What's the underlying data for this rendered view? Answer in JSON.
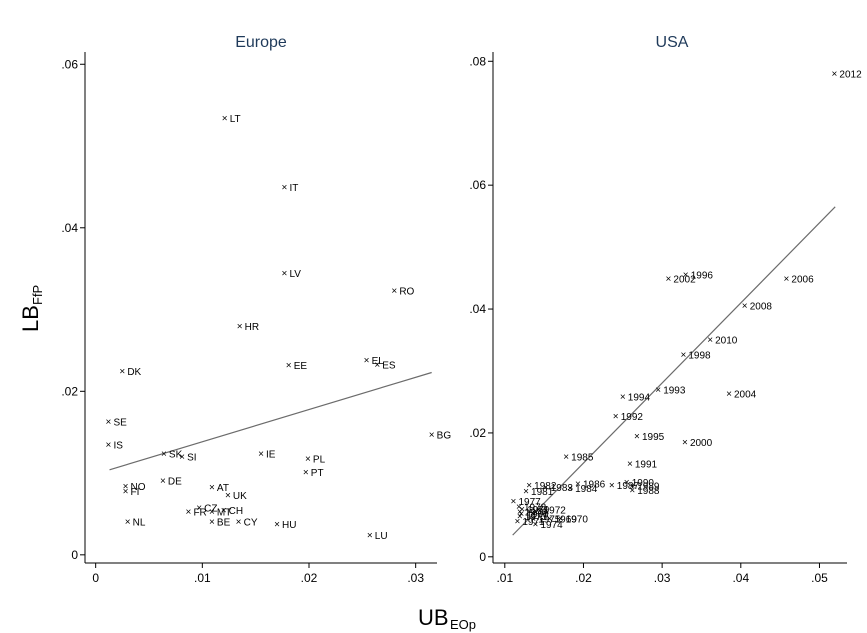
{
  "chart_data": [
    {
      "type": "scatter",
      "title": "Europe",
      "xlim": [
        -0.001,
        0.032
      ],
      "ylim": [
        -0.001,
        0.0615
      ],
      "xticks": [
        "0",
        ".01",
        ".02",
        ".03"
      ],
      "xtick_values": [
        0,
        0.01,
        0.02,
        0.03
      ],
      "yticks": [
        "0",
        ".02",
        ".04",
        ".06"
      ],
      "ytick_values": [
        0,
        0.02,
        0.04,
        0.06
      ],
      "points": [
        {
          "label": "LT",
          "x": 0.0121,
          "y": 0.0534
        },
        {
          "label": "IT",
          "x": 0.0177,
          "y": 0.045
        },
        {
          "label": "LV",
          "x": 0.0177,
          "y": 0.0345
        },
        {
          "label": "RO",
          "x": 0.028,
          "y": 0.0323
        },
        {
          "label": "HR",
          "x": 0.0135,
          "y": 0.028
        },
        {
          "label": "DK",
          "x": 0.0025,
          "y": 0.0225
        },
        {
          "label": "EE",
          "x": 0.0181,
          "y": 0.0232
        },
        {
          "label": "EL",
          "x": 0.0254,
          "y": 0.0238
        },
        {
          "label": "ES",
          "x": 0.0264,
          "y": 0.0233
        },
        {
          "label": "SE",
          "x": 0.0012,
          "y": 0.0163
        },
        {
          "label": "BG",
          "x": 0.0315,
          "y": 0.0147
        },
        {
          "label": "IS",
          "x": 0.0012,
          "y": 0.0135
        },
        {
          "label": "SK",
          "x": 0.0064,
          "y": 0.0124
        },
        {
          "label": "SI",
          "x": 0.0081,
          "y": 0.012
        },
        {
          "label": "IE",
          "x": 0.0155,
          "y": 0.0124
        },
        {
          "label": "PL",
          "x": 0.0199,
          "y": 0.0118
        },
        {
          "label": "PT",
          "x": 0.0197,
          "y": 0.0101
        },
        {
          "label": "DE",
          "x": 0.0063,
          "y": 0.0091
        },
        {
          "label": "NO",
          "x": 0.0028,
          "y": 0.0084
        },
        {
          "label": "FI",
          "x": 0.0028,
          "y": 0.0078
        },
        {
          "label": "AT",
          "x": 0.0109,
          "y": 0.0083
        },
        {
          "label": "UK",
          "x": 0.0124,
          "y": 0.0073
        },
        {
          "label": "CZ",
          "x": 0.0097,
          "y": 0.0058
        },
        {
          "label": "FR",
          "x": 0.0087,
          "y": 0.0053
        },
        {
          "label": "MT",
          "x": 0.0109,
          "y": 0.0053
        },
        {
          "label": "CH",
          "x": 0.012,
          "y": 0.0055
        },
        {
          "label": "BE",
          "x": 0.0109,
          "y": 0.0041
        },
        {
          "label": "CY",
          "x": 0.0134,
          "y": 0.0041
        },
        {
          "label": "NL",
          "x": 0.003,
          "y": 0.0041
        },
        {
          "label": "HU",
          "x": 0.017,
          "y": 0.0038
        },
        {
          "label": "LU",
          "x": 0.0257,
          "y": 0.0024
        }
      ],
      "fit_line": {
        "x": [
          0.0013,
          0.0315
        ],
        "y": [
          0.0104,
          0.0223
        ]
      }
    },
    {
      "type": "scatter",
      "title": "USA",
      "xlim": [
        0.0085,
        0.0535
      ],
      "ylim": [
        -0.001,
        0.0815
      ],
      "xticks": [
        ".01",
        ".02",
        ".03",
        ".04",
        ".05"
      ],
      "xtick_values": [
        0.01,
        0.02,
        0.03,
        0.04,
        0.05
      ],
      "yticks": [
        "0",
        ".02",
        ".04",
        ".06",
        ".08"
      ],
      "ytick_values": [
        0,
        0.02,
        0.04,
        0.06,
        0.08
      ],
      "points": [
        {
          "label": "2012",
          "x": 0.0519,
          "y": 0.078
        },
        {
          "label": "1996",
          "x": 0.033,
          "y": 0.0456
        },
        {
          "label": "2002",
          "x": 0.0308,
          "y": 0.0449
        },
        {
          "label": "2006",
          "x": 0.0458,
          "y": 0.0449
        },
        {
          "label": "2008",
          "x": 0.0405,
          "y": 0.0406
        },
        {
          "label": "2010",
          "x": 0.0361,
          "y": 0.0351
        },
        {
          "label": "1998",
          "x": 0.0327,
          "y": 0.0327
        },
        {
          "label": "1993",
          "x": 0.0295,
          "y": 0.027
        },
        {
          "label": "1994",
          "x": 0.025,
          "y": 0.0259
        },
        {
          "label": "2004",
          "x": 0.0385,
          "y": 0.0264
        },
        {
          "label": "1992",
          "x": 0.0241,
          "y": 0.0227
        },
        {
          "label": "1995",
          "x": 0.0268,
          "y": 0.0195
        },
        {
          "label": "2000",
          "x": 0.0329,
          "y": 0.0185
        },
        {
          "label": "1985",
          "x": 0.0178,
          "y": 0.0162
        },
        {
          "label": "1991",
          "x": 0.0259,
          "y": 0.0151
        },
        {
          "label": "1990",
          "x": 0.0255,
          "y": 0.0121
        },
        {
          "label": "1986",
          "x": 0.0193,
          "y": 0.0118
        },
        {
          "label": "1987",
          "x": 0.0236,
          "y": 0.0116
        },
        {
          "label": "1989",
          "x": 0.0262,
          "y": 0.0115
        },
        {
          "label": "1982",
          "x": 0.0131,
          "y": 0.0116
        },
        {
          "label": "1983",
          "x": 0.0152,
          "y": 0.0113
        },
        {
          "label": "1984",
          "x": 0.0183,
          "y": 0.0111
        },
        {
          "label": "1988",
          "x": 0.0262,
          "y": 0.0108
        },
        {
          "label": "1981",
          "x": 0.0127,
          "y": 0.0106
        },
        {
          "label": "1977",
          "x": 0.0111,
          "y": 0.009
        },
        {
          "label": "1978",
          "x": 0.0118,
          "y": 0.0081
        },
        {
          "label": "1979",
          "x": 0.0122,
          "y": 0.0077
        },
        {
          "label": "1976",
          "x": 0.0119,
          "y": 0.0073
        },
        {
          "label": "1980",
          "x": 0.0121,
          "y": 0.007
        },
        {
          "label": "1972",
          "x": 0.0143,
          "y": 0.0076
        },
        {
          "label": "1973",
          "x": 0.0119,
          "y": 0.0066
        },
        {
          "label": "1975",
          "x": 0.0136,
          "y": 0.0062
        },
        {
          "label": "1969",
          "x": 0.0157,
          "y": 0.0062
        },
        {
          "label": "1970",
          "x": 0.0171,
          "y": 0.0062
        },
        {
          "label": "1971",
          "x": 0.0116,
          "y": 0.0058
        },
        {
          "label": "1974",
          "x": 0.0139,
          "y": 0.0053
        }
      ],
      "fit_line": {
        "x": [
          0.011,
          0.052
        ],
        "y": [
          0.0035,
          0.0565
        ]
      }
    }
  ],
  "axis_titles": {
    "x_main": "UB",
    "x_sub": "EOp",
    "y_main": "LB",
    "y_sub": "FfP"
  }
}
